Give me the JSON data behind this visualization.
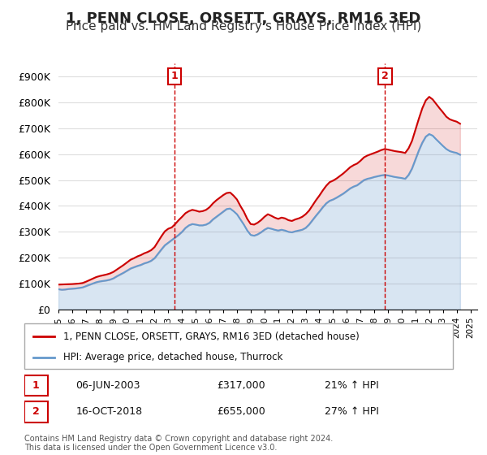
{
  "title": "1, PENN CLOSE, ORSETT, GRAYS, RM16 3ED",
  "subtitle": "Price paid vs. HM Land Registry's House Price Index (HPI)",
  "legend_line1": "1, PENN CLOSE, ORSETT, GRAYS, RM16 3ED (detached house)",
  "legend_line2": "HPI: Average price, detached house, Thurrock",
  "footnote": "Contains HM Land Registry data © Crown copyright and database right 2024.\nThis data is licensed under the Open Government Licence v3.0.",
  "marker1_label": "1",
  "marker1_date": "06-JUN-2003",
  "marker1_price": "£317,000",
  "marker1_hpi": "21% ↑ HPI",
  "marker1_year": 2003.44,
  "marker1_value": 317000,
  "marker2_label": "2",
  "marker2_date": "16-OCT-2018",
  "marker2_price": "£655,000",
  "marker2_hpi": "27% ↑ HPI",
  "marker2_year": 2018.79,
  "marker2_value": 655000,
  "ylim": [
    0,
    950000
  ],
  "yticks": [
    0,
    100000,
    200000,
    300000,
    400000,
    500000,
    600000,
    700000,
    800000,
    900000
  ],
  "ytick_labels": [
    "£0",
    "£100K",
    "£200K",
    "£300K",
    "£400K",
    "£500K",
    "£600K",
    "£700K",
    "£800K",
    "£900K"
  ],
  "red_color": "#cc0000",
  "blue_color": "#6699cc",
  "marker_box_color": "#cc0000",
  "background_color": "#ffffff",
  "grid_color": "#dddddd",
  "title_fontsize": 13,
  "subtitle_fontsize": 11,
  "hpi_data": {
    "years": [
      1995.0,
      1995.25,
      1995.5,
      1995.75,
      1996.0,
      1996.25,
      1996.5,
      1996.75,
      1997.0,
      1997.25,
      1997.5,
      1997.75,
      1998.0,
      1998.25,
      1998.5,
      1998.75,
      1999.0,
      1999.25,
      1999.5,
      1999.75,
      2000.0,
      2000.25,
      2000.5,
      2000.75,
      2001.0,
      2001.25,
      2001.5,
      2001.75,
      2002.0,
      2002.25,
      2002.5,
      2002.75,
      2003.0,
      2003.25,
      2003.5,
      2003.75,
      2004.0,
      2004.25,
      2004.5,
      2004.75,
      2005.0,
      2005.25,
      2005.5,
      2005.75,
      2006.0,
      2006.25,
      2006.5,
      2006.75,
      2007.0,
      2007.25,
      2007.5,
      2007.75,
      2008.0,
      2008.25,
      2008.5,
      2008.75,
      2009.0,
      2009.25,
      2009.5,
      2009.75,
      2010.0,
      2010.25,
      2010.5,
      2010.75,
      2011.0,
      2011.25,
      2011.5,
      2011.75,
      2012.0,
      2012.25,
      2012.5,
      2012.75,
      2013.0,
      2013.25,
      2013.5,
      2013.75,
      2014.0,
      2014.25,
      2014.5,
      2014.75,
      2015.0,
      2015.25,
      2015.5,
      2015.75,
      2016.0,
      2016.25,
      2016.5,
      2016.75,
      2017.0,
      2017.25,
      2017.5,
      2017.75,
      2018.0,
      2018.25,
      2018.5,
      2018.75,
      2019.0,
      2019.25,
      2019.5,
      2019.75,
      2020.0,
      2020.25,
      2020.5,
      2020.75,
      2021.0,
      2021.25,
      2021.5,
      2021.75,
      2022.0,
      2022.25,
      2022.5,
      2022.75,
      2023.0,
      2023.25,
      2023.5,
      2023.75,
      2024.0,
      2024.25
    ],
    "values": [
      78000,
      76000,
      77000,
      79000,
      80000,
      81000,
      83000,
      85000,
      90000,
      95000,
      100000,
      105000,
      108000,
      110000,
      112000,
      115000,
      120000,
      128000,
      135000,
      142000,
      150000,
      158000,
      163000,
      168000,
      172000,
      178000,
      182000,
      188000,
      198000,
      215000,
      232000,
      248000,
      258000,
      268000,
      278000,
      288000,
      300000,
      315000,
      325000,
      330000,
      328000,
      325000,
      325000,
      328000,
      335000,
      348000,
      358000,
      368000,
      378000,
      388000,
      390000,
      380000,
      368000,
      348000,
      328000,
      305000,
      288000,
      285000,
      290000,
      298000,
      308000,
      315000,
      312000,
      308000,
      305000,
      308000,
      305000,
      300000,
      298000,
      302000,
      305000,
      308000,
      315000,
      328000,
      345000,
      362000,
      378000,
      395000,
      410000,
      420000,
      425000,
      432000,
      440000,
      448000,
      458000,
      468000,
      475000,
      480000,
      490000,
      500000,
      505000,
      508000,
      512000,
      515000,
      518000,
      520000,
      518000,
      515000,
      512000,
      510000,
      508000,
      505000,
      520000,
      545000,
      580000,
      615000,
      645000,
      668000,
      678000,
      672000,
      658000,
      645000,
      632000,
      620000,
      612000,
      608000,
      605000,
      598000
    ]
  },
  "red_data": {
    "years": [
      1995.0,
      1995.25,
      1995.5,
      1995.75,
      1996.0,
      1996.25,
      1996.5,
      1996.75,
      1997.0,
      1997.25,
      1997.5,
      1997.75,
      1998.0,
      1998.25,
      1998.5,
      1998.75,
      1999.0,
      1999.25,
      1999.5,
      1999.75,
      2000.0,
      2000.25,
      2000.5,
      2000.75,
      2001.0,
      2001.25,
      2001.5,
      2001.75,
      2002.0,
      2002.25,
      2002.5,
      2002.75,
      2003.0,
      2003.25,
      2003.5,
      2003.75,
      2004.0,
      2004.25,
      2004.5,
      2004.75,
      2005.0,
      2005.25,
      2005.5,
      2005.75,
      2006.0,
      2006.25,
      2006.5,
      2006.75,
      2007.0,
      2007.25,
      2007.5,
      2007.75,
      2008.0,
      2008.25,
      2008.5,
      2008.75,
      2009.0,
      2009.25,
      2009.5,
      2009.75,
      2010.0,
      2010.25,
      2010.5,
      2010.75,
      2011.0,
      2011.25,
      2011.5,
      2011.75,
      2012.0,
      2012.25,
      2012.5,
      2012.75,
      2013.0,
      2013.25,
      2013.5,
      2013.75,
      2014.0,
      2014.25,
      2014.5,
      2014.75,
      2015.0,
      2015.25,
      2015.5,
      2015.75,
      2016.0,
      2016.25,
      2016.5,
      2016.75,
      2017.0,
      2017.25,
      2017.5,
      2017.75,
      2018.0,
      2018.25,
      2018.5,
      2018.75,
      2019.0,
      2019.25,
      2019.5,
      2019.75,
      2020.0,
      2020.25,
      2020.5,
      2020.75,
      2021.0,
      2021.25,
      2021.5,
      2021.75,
      2022.0,
      2022.25,
      2022.5,
      2022.75,
      2023.0,
      2023.25,
      2023.5,
      2023.75,
      2024.0,
      2024.25
    ],
    "values": [
      96000,
      96500,
      97000,
      97500,
      98000,
      99000,
      100000,
      102000,
      107000,
      113000,
      119000,
      125000,
      129000,
      132000,
      135000,
      139000,
      145000,
      154000,
      163000,
      172000,
      182000,
      192000,
      198000,
      205000,
      210000,
      217000,
      222000,
      229000,
      241000,
      262000,
      283000,
      302000,
      312000,
      317000,
      330000,
      345000,
      358000,
      372000,
      380000,
      385000,
      382000,
      378000,
      380000,
      385000,
      395000,
      410000,
      422000,
      432000,
      442000,
      450000,
      452000,
      440000,
      425000,
      400000,
      378000,
      350000,
      330000,
      328000,
      335000,
      345000,
      358000,
      368000,
      362000,
      355000,
      350000,
      355000,
      352000,
      345000,
      342000,
      348000,
      352000,
      358000,
      368000,
      382000,
      402000,
      422000,
      440000,
      460000,
      478000,
      492000,
      498000,
      506000,
      516000,
      526000,
      538000,
      550000,
      558000,
      564000,
      575000,
      588000,
      595000,
      600000,
      605000,
      610000,
      616000,
      620000,
      618000,
      615000,
      612000,
      610000,
      608000,
      605000,
      623000,
      652000,
      695000,
      738000,
      778000,
      808000,
      822000,
      812000,
      795000,
      778000,
      762000,
      745000,
      735000,
      730000,
      726000,
      718000
    ]
  }
}
